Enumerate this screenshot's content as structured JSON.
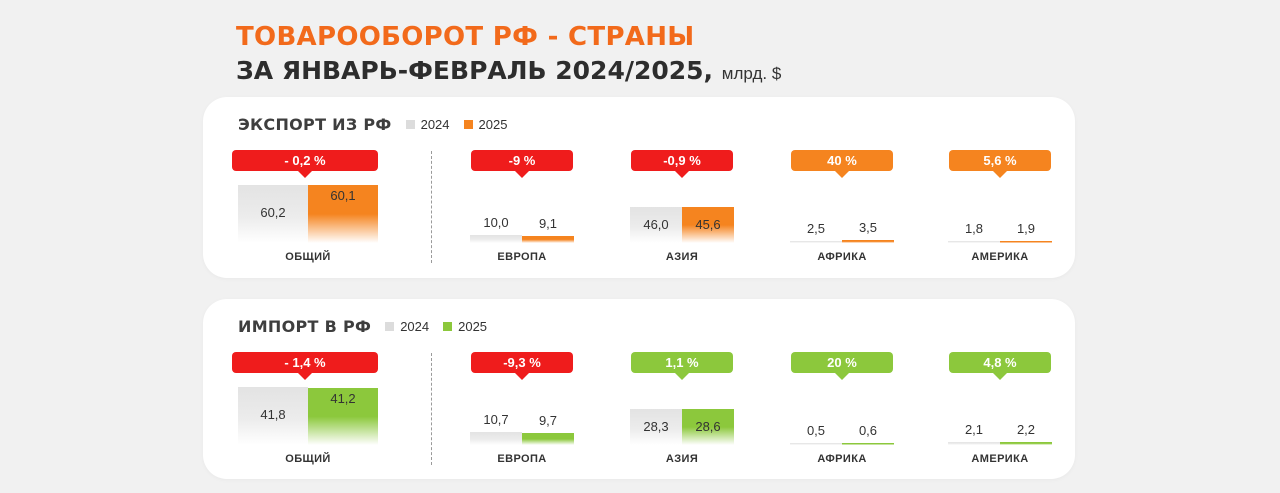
{
  "title": {
    "line1": "ТОВАРООБОРОТ РФ - СТРАНЫ",
    "line2": "ЗА ЯНВАРЬ-ФЕВРАЛЬ 2024/2025,",
    "unit": "млрд. $"
  },
  "colors": {
    "export_2025": "#f5841f",
    "import_2025": "#8cc83c",
    "year_2024": "#dcdcdc",
    "negative": "#ef1c1c",
    "positive_export": "#f5841f",
    "positive_import": "#8cc83c"
  },
  "chart_data": [
    {
      "type": "bar",
      "title": "ЭКСПОРТ ИЗ РФ",
      "legend": [
        "2024",
        "2025"
      ],
      "categories": [
        "ОБЩИЙ",
        "ЕВРОПА",
        "АЗИЯ",
        "АФРИКА",
        "АМЕРИКА"
      ],
      "series": [
        {
          "name": "2024",
          "values": [
            60.2,
            10.0,
            46.0,
            2.5,
            1.8
          ],
          "labels": [
            "60,2",
            "10,0",
            "46,0",
            "2,5",
            "1,8"
          ]
        },
        {
          "name": "2025",
          "values": [
            60.1,
            9.1,
            45.6,
            3.5,
            1.9
          ],
          "labels": [
            "60,1",
            "9,1",
            "45,6",
            "3,5",
            "1,9"
          ]
        }
      ],
      "changes": [
        "- 0,2 %",
        "-9 %",
        "-0,9 %",
        "40 %",
        "5,6 %"
      ],
      "change_sign": [
        "neg",
        "neg",
        "neg",
        "pos",
        "pos"
      ]
    },
    {
      "type": "bar",
      "title": "ИМПОРТ В РФ",
      "legend": [
        "2024",
        "2025"
      ],
      "categories": [
        "ОБЩИЙ",
        "ЕВРОПА",
        "АЗИЯ",
        "АФРИКА",
        "АМЕРИКА"
      ],
      "series": [
        {
          "name": "2024",
          "values": [
            41.8,
            10.7,
            28.3,
            0.5,
            2.1
          ],
          "labels": [
            "41,8",
            "10,7",
            "28,3",
            "0,5",
            "2,1"
          ]
        },
        {
          "name": "2025",
          "values": [
            41.2,
            9.7,
            28.6,
            0.6,
            2.2
          ],
          "labels": [
            "41,2",
            "9,7",
            "28,6",
            "0,6",
            "2,2"
          ]
        }
      ],
      "changes": [
        "- 1,4 %",
        "-9,3 %",
        "1,1 %",
        "20 %",
        "4,8 %"
      ],
      "change_sign": [
        "neg",
        "neg",
        "pos",
        "pos",
        "pos"
      ]
    }
  ]
}
